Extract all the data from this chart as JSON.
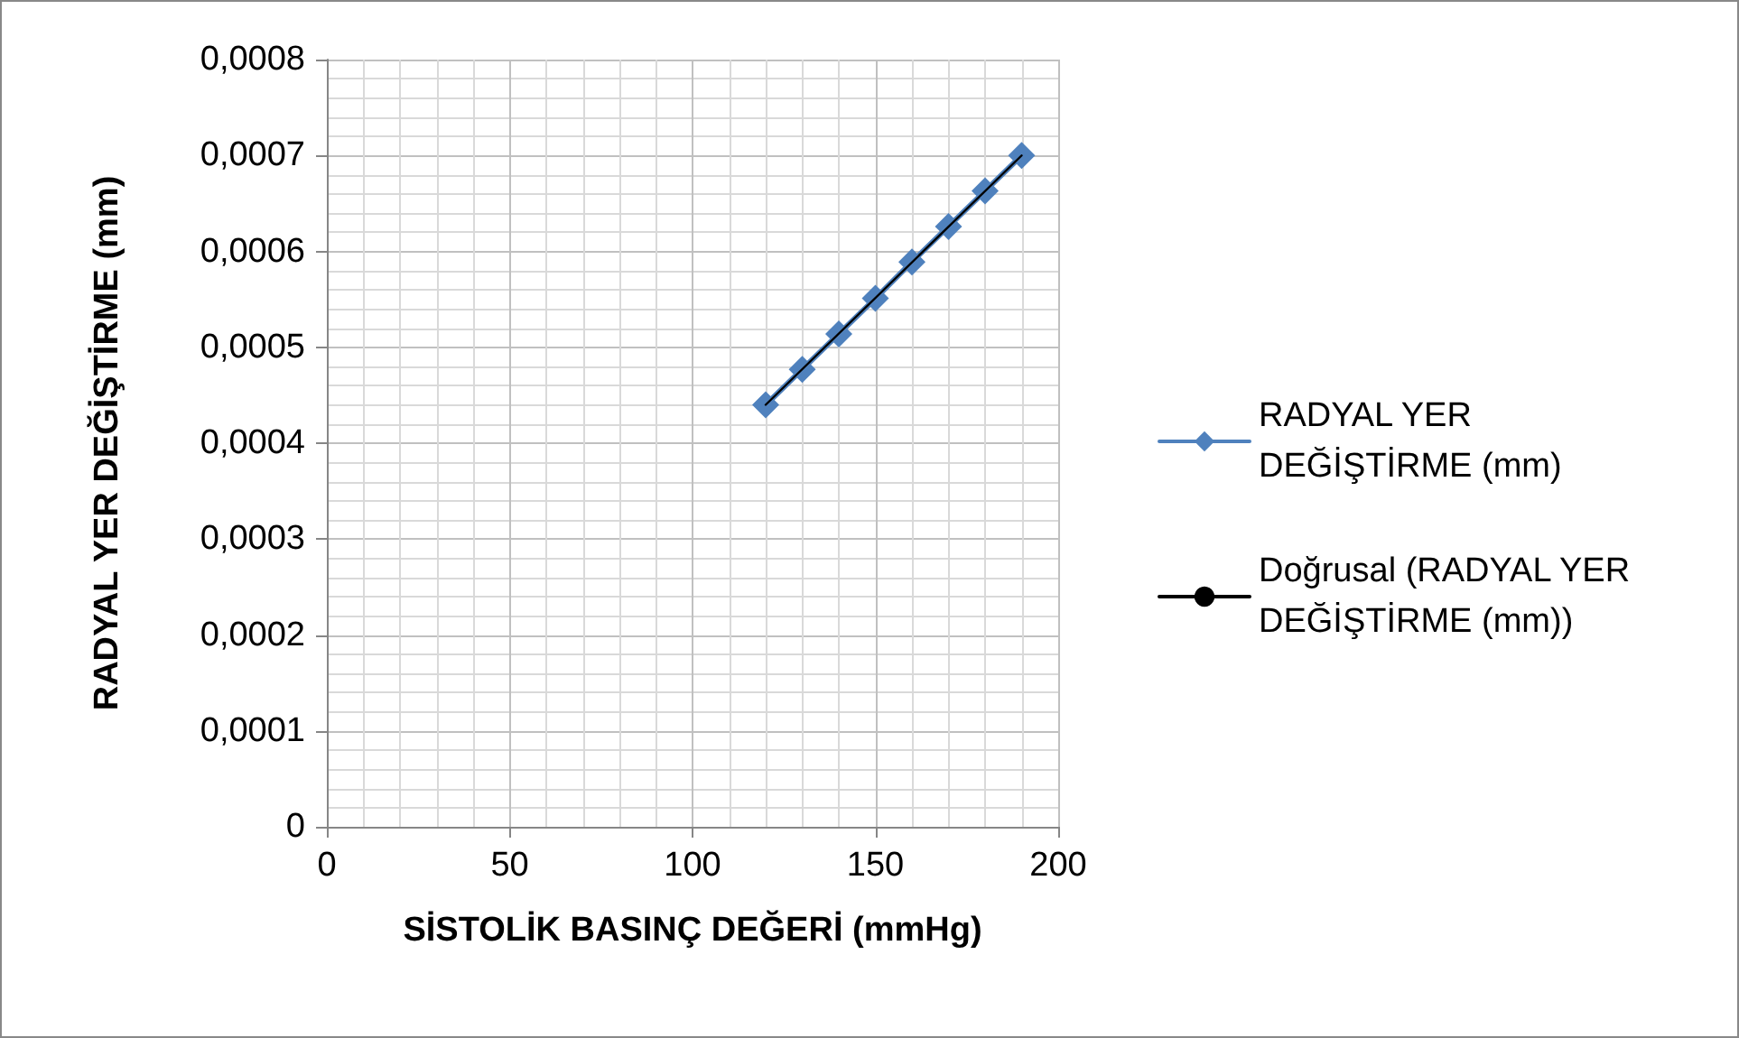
{
  "chart_data": {
    "type": "line",
    "xlabel": "SİSTOLİK BASINÇ DEĞERİ (mmHg)",
    "ylabel": "RADYAL YER DEĞİŞTİRME (mm)",
    "x": [
      120,
      130,
      140,
      150,
      160,
      170,
      180,
      190
    ],
    "series": [
      {
        "name": "RADYAL YER DEĞİŞTİRME (mm)",
        "color": "#4f81bd",
        "marker": "diamond",
        "values": [
          0.00044,
          0.000477,
          0.000514,
          0.000551,
          0.000589,
          0.000626,
          0.000663,
          0.0007
        ]
      },
      {
        "name": "Doğrusal (RADYAL YER DEĞİŞTİRME (mm))",
        "color": "#000000",
        "marker": "none",
        "x": [
          120,
          190
        ],
        "values": [
          0.00044,
          0.0007
        ]
      }
    ],
    "xlim": [
      0,
      200
    ],
    "xticks": [
      0,
      50,
      100,
      150,
      200
    ],
    "ylim": [
      0,
      0.0008
    ],
    "yticks": [
      {
        "value": 0,
        "label": "0"
      },
      {
        "value": 0.0001,
        "label": "0,0001"
      },
      {
        "value": 0.0002,
        "label": "0,0002"
      },
      {
        "value": 0.0003,
        "label": "0,0003"
      },
      {
        "value": 0.0004,
        "label": "0,0004"
      },
      {
        "value": 0.0005,
        "label": "0,0005"
      },
      {
        "value": 0.0006,
        "label": "0,0006"
      },
      {
        "value": 0.0007,
        "label": "0,0007"
      },
      {
        "value": 0.0008,
        "label": "0,0008"
      }
    ],
    "grid": true,
    "legend": "right",
    "line_style": "solid"
  }
}
